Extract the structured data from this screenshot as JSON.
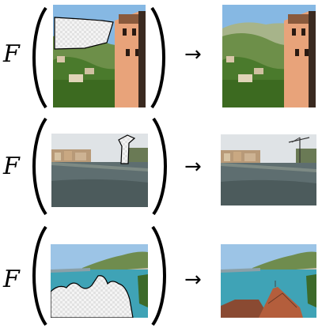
{
  "function_symbol": "F",
  "arrow_symbol": "→",
  "rows": [
    {
      "name": "row-1",
      "input": "input-image-1-masked",
      "output": "output-image-1-completed",
      "scene": "tower-on-hillside"
    },
    {
      "name": "row-2",
      "input": "input-image-2-masked",
      "output": "output-image-2-completed",
      "scene": "river-city-crane"
    },
    {
      "name": "row-3",
      "input": "input-image-3-masked",
      "output": "output-image-3-completed",
      "scene": "lake-shore-rooftops"
    }
  ],
  "colors": {
    "text": "#000000",
    "mask_fill": "#f2f2f2",
    "mask_stroke": "#000000"
  }
}
